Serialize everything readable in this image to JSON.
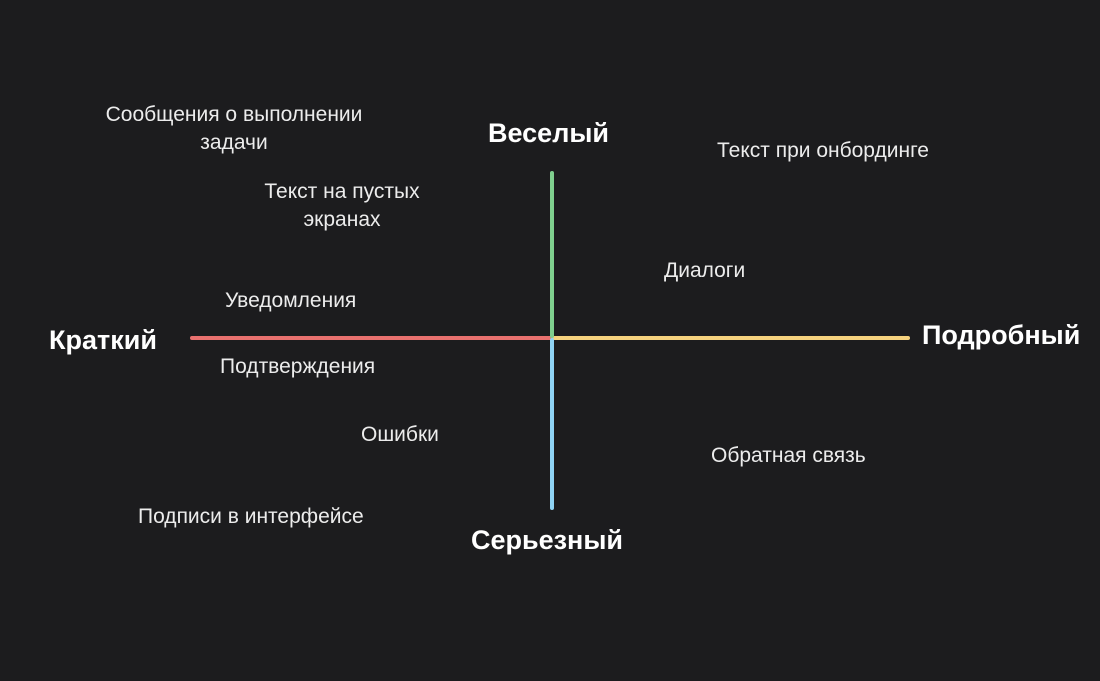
{
  "axes": {
    "top": {
      "label": "Веселый",
      "color": "#7fcf8e"
    },
    "bottom": {
      "label": "Серьезный",
      "color": "#8fd3f4"
    },
    "left": {
      "label": "Краткий",
      "color": "#e9716f"
    },
    "right": {
      "label": "Подробный",
      "color": "#f5d27e"
    }
  },
  "items": {
    "task_complete": {
      "line1": "Сообщения о выполнении",
      "line2": "задачи"
    },
    "empty_screens": {
      "line1": "Текст на пустых",
      "line2": "экранах"
    },
    "notifications": "Уведомления",
    "confirmations": "Подтверждения",
    "errors": "Ошибки",
    "ui_labels": "Подписи в интерфейсе",
    "onboarding": "Текст при онбординге",
    "dialogs": "Диалоги",
    "feedback": "Обратная связь"
  }
}
